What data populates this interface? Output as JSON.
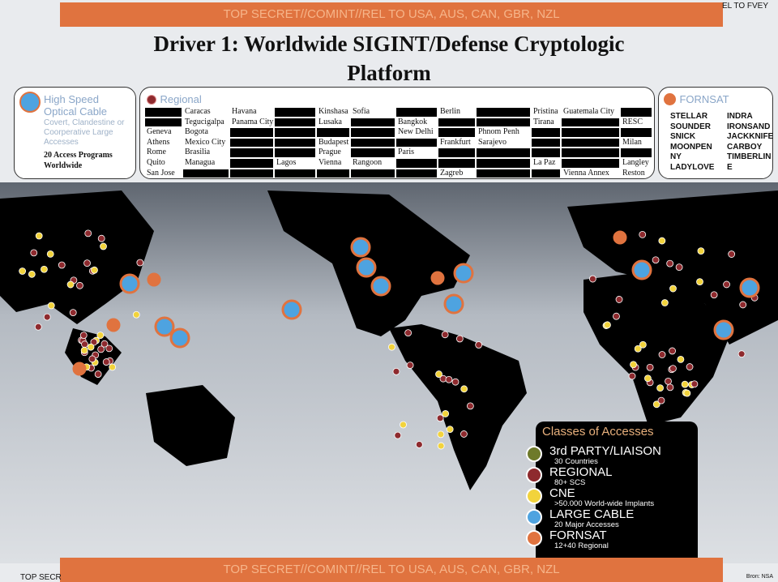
{
  "classification": "TOP SECRET//COMINT//REL TO USA, AUS, CAN, GBR, NZL",
  "corner_top_right": "EL TO FVEY",
  "corner_bottom_left": "TOP SECR",
  "source": "Bron: NSA",
  "title_line1": "Driver 1:  Worldwide  SIGINT/Defense  Cryptologic",
  "title_line2": "Platform",
  "cable_box": {
    "title": "High Speed Optical Cable",
    "subtitle": "Covert, Clandestine or Coorperative Large Accesses",
    "note": "20 Access Programs Worldwide"
  },
  "regional_box": {
    "title": "Regional",
    "rows": [
      [
        null,
        "Caracas",
        "Havana",
        null,
        "Kinshasa",
        "Sofia",
        null,
        "Berlin",
        null,
        "Pristina",
        "Guatemala City",
        null
      ],
      [
        null,
        "Tegucigalpa",
        "Panama City",
        null,
        "Lusaka",
        null,
        "Bangkok",
        null,
        null,
        "Tirana",
        null,
        "RESC"
      ],
      [
        "Geneva",
        "Bogota",
        null,
        null,
        null,
        null,
        "New Delhi",
        null,
        "Phnom Penh",
        null,
        null,
        null
      ],
      [
        "Athens",
        "Mexico City",
        null,
        null,
        "Budapest",
        null,
        null,
        "Frankfurt",
        "Sarajevo",
        null,
        null,
        "Milan"
      ],
      [
        "Rome",
        "Brasilia",
        null,
        null,
        "Prague",
        null,
        "Paris",
        null,
        null,
        null,
        null,
        null
      ],
      [
        "Quito",
        "Managua",
        null,
        "Lagos",
        "Vienna",
        "Rangoon",
        null,
        null,
        null,
        "La Paz",
        null,
        "Langley"
      ],
      [
        "San Jose",
        null,
        null,
        null,
        null,
        null,
        null,
        "Zagreb",
        null,
        null,
        "Vienna Annex",
        "Reston"
      ]
    ]
  },
  "fornsat_box": {
    "title": "FORNSAT",
    "items": [
      "STELLAR",
      "INDRA",
      "SOUNDER",
      "IRONSAND",
      "SNICK",
      "JACKKNIFE",
      "MOONPEN",
      "CARBOY",
      "NY",
      "TIMBERLIN",
      "LADYLOVE",
      "E"
    ]
  },
  "legend": {
    "title": "Classes of Accesses",
    "items": [
      {
        "name": "3rd PARTY/LIAISON",
        "sub": "30 Countries",
        "color": "#6e7a2a"
      },
      {
        "name": "REGIONAL",
        "sub": "80+ SCS",
        "color": "#8e2a2e"
      },
      {
        "name": "CNE",
        "sub": ">50.000 World-wide Implants",
        "color": "#f2d33c"
      },
      {
        "name": "LARGE CABLE",
        "sub": "20 Major Accesses",
        "color": "#4ea3e0"
      },
      {
        "name": "FORNSAT",
        "sub": "12+40 Regional",
        "color": "#e0733f"
      }
    ]
  }
}
